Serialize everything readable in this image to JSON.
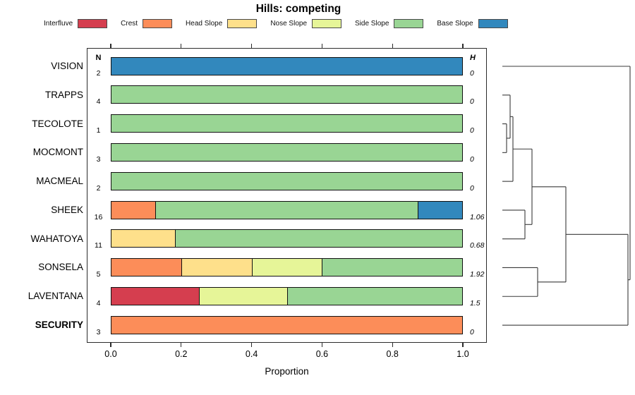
{
  "chart_data": {
    "type": "bar",
    "orientation": "horizontal-stacked",
    "title": "Hills: competing",
    "xlabel": "Proportion",
    "xlim": [
      0,
      1
    ],
    "x_ticks": [
      0,
      0.2,
      0.4,
      0.6,
      0.8,
      1.0
    ],
    "grid": false,
    "legend_position": "top",
    "categories": [
      "Interfluve",
      "Crest",
      "Head Slope",
      "Nose Slope",
      "Side Slope",
      "Base Slope"
    ],
    "colors": {
      "Interfluve": "#D53E4F",
      "Crest": "#FC8D59",
      "Head Slope": "#FEE08B",
      "Nose Slope": "#E6F598",
      "Side Slope": "#99D594",
      "Base Slope": "#3288BD"
    },
    "col_headers": {
      "n": "N",
      "h": "H"
    },
    "rows": [
      {
        "name": "VISION",
        "n": 2,
        "h": "0",
        "bold": false,
        "segments": [
          {
            "category": "Base Slope",
            "value": 1.0
          }
        ]
      },
      {
        "name": "TRAPPS",
        "n": 4,
        "h": "0",
        "bold": false,
        "segments": [
          {
            "category": "Side Slope",
            "value": 1.0
          }
        ]
      },
      {
        "name": "TECOLOTE",
        "n": 1,
        "h": "0",
        "bold": false,
        "segments": [
          {
            "category": "Side Slope",
            "value": 1.0
          }
        ]
      },
      {
        "name": "MOCMONT",
        "n": 3,
        "h": "0",
        "bold": false,
        "segments": [
          {
            "category": "Side Slope",
            "value": 1.0
          }
        ]
      },
      {
        "name": "MACMEAL",
        "n": 2,
        "h": "0",
        "bold": false,
        "segments": [
          {
            "category": "Side Slope",
            "value": 1.0
          }
        ]
      },
      {
        "name": "SHEEK",
        "n": 16,
        "h": "1.06",
        "bold": false,
        "segments": [
          {
            "category": "Crest",
            "value": 0.125
          },
          {
            "category": "Side Slope",
            "value": 0.75
          },
          {
            "category": "Base Slope",
            "value": 0.125
          }
        ]
      },
      {
        "name": "WAHATOYA",
        "n": 11,
        "h": "0.68",
        "bold": false,
        "segments": [
          {
            "category": "Head Slope",
            "value": 0.182
          },
          {
            "category": "Side Slope",
            "value": 0.818
          }
        ]
      },
      {
        "name": "SONSELA",
        "n": 5,
        "h": "1.92",
        "bold": false,
        "segments": [
          {
            "category": "Crest",
            "value": 0.2
          },
          {
            "category": "Head Slope",
            "value": 0.2
          },
          {
            "category": "Nose Slope",
            "value": 0.2
          },
          {
            "category": "Side Slope",
            "value": 0.4
          }
        ]
      },
      {
        "name": "LAVENTANA",
        "n": 4,
        "h": "1.5",
        "bold": false,
        "segments": [
          {
            "category": "Interfluve",
            "value": 0.25
          },
          {
            "category": "Nose Slope",
            "value": 0.25
          },
          {
            "category": "Side Slope",
            "value": 0.5
          }
        ]
      },
      {
        "name": "SECURITY",
        "n": 3,
        "h": "0",
        "bold": true,
        "segments": [
          {
            "category": "Crest",
            "value": 1.0
          }
        ]
      }
    ],
    "dendrogram": {
      "position": "right",
      "leaf_order": [
        "VISION",
        "TRAPPS",
        "TECOLOTE",
        "MOCMONT",
        "MACMEAL",
        "SHEEK",
        "WAHATOYA",
        "SONSELA",
        "LAVENTANA",
        "SECURITY"
      ],
      "leaf_start_x": 22,
      "tree": {
        "x": 203,
        "children": [
          {
            "leaf": "VISION"
          },
          {
            "x": 200,
            "children": [
              {
                "x": 112,
                "children": [
                  {
                    "x": 64,
                    "children": [
                      {
                        "x": 37,
                        "children": [
                          {
                            "x": 33,
                            "children": [
                              {
                                "leaf": "TRAPPS"
                              },
                              {
                                "x": 28,
                                "children": [
                                  {
                                    "leaf": "TECOLOTE"
                                  },
                                  {
                                    "leaf": "MOCMONT"
                                  }
                                ]
                              }
                            ]
                          },
                          {
                            "leaf": "MACMEAL"
                          }
                        ]
                      },
                      {
                        "x": 54,
                        "children": [
                          {
                            "leaf": "SHEEK"
                          },
                          {
                            "leaf": "WAHATOYA"
                          }
                        ]
                      }
                    ]
                  },
                  {
                    "x": 72,
                    "children": [
                      {
                        "leaf": "SONSELA"
                      },
                      {
                        "leaf": "LAVENTANA"
                      }
                    ]
                  }
                ]
              },
              {
                "leaf": "SECURITY"
              }
            ]
          }
        ]
      }
    }
  }
}
